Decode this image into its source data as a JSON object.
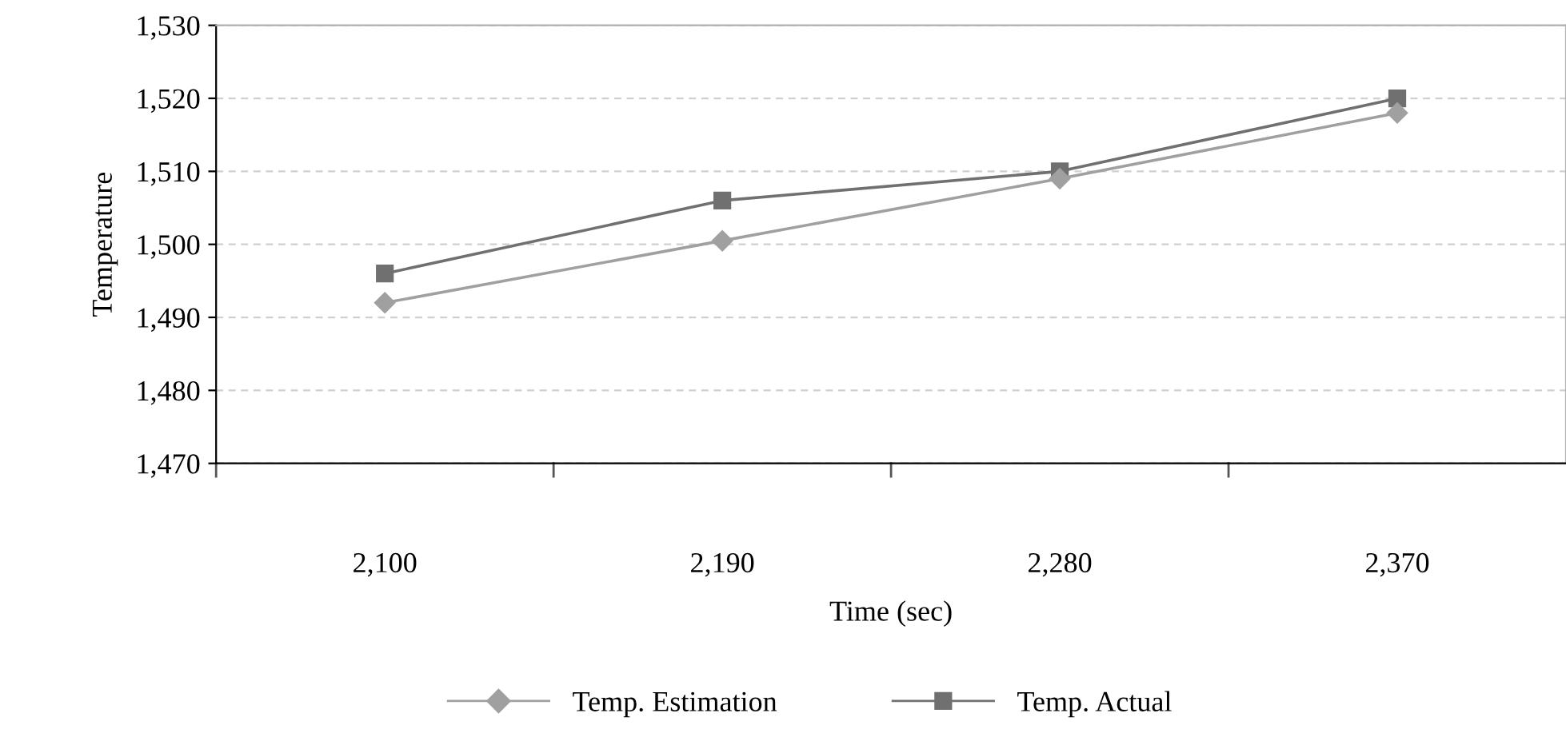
{
  "chart_data": {
    "type": "line",
    "xlabel": "Time (sec)",
    "ylabel": "Temperature",
    "categories": [
      "2,100",
      "2,190",
      "2,280",
      "2,370"
    ],
    "series": [
      {
        "name": "Temp. Estimation",
        "color": "#a0a0a0",
        "marker": "diamond",
        "values": [
          1492,
          1500.5,
          1509,
          1518
        ]
      },
      {
        "name": "Temp. Actual",
        "color": "#707070",
        "marker": "square",
        "values": [
          1496,
          1506,
          1510,
          1520
        ]
      }
    ],
    "ylim": [
      1470,
      1530
    ],
    "yticks": [
      {
        "value": 1470,
        "label": "1,470"
      },
      {
        "value": 1480,
        "label": "1,480"
      },
      {
        "value": 1490,
        "label": "1,490"
      },
      {
        "value": 1500,
        "label": "1,500"
      },
      {
        "value": 1510,
        "label": "1,510"
      },
      {
        "value": 1520,
        "label": "1,520"
      },
      {
        "value": 1530,
        "label": "1,530"
      }
    ],
    "grid": "y",
    "legend": "bottom"
  }
}
